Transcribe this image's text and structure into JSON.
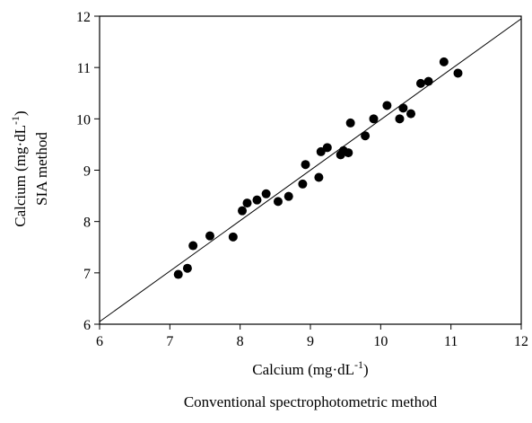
{
  "chart_data": {
    "type": "scatter",
    "xlabel": "Calcium (mg·dL",
    "xlabel_sup": "-1",
    "xlabel_close": ")",
    "xlabel_sub": "Conventional spectrophotometric method",
    "ylabel": "Calcium (mg·dL",
    "ylabel_sup": "-1",
    "ylabel_close": ")",
    "ylabel_sub": "SIA method",
    "xlim": [
      6,
      12
    ],
    "ylim": [
      6,
      12
    ],
    "xticks": [
      "6",
      "7",
      "8",
      "9",
      "10",
      "11",
      "12"
    ],
    "yticks": [
      "6",
      "7",
      "8",
      "9",
      "10",
      "11",
      "12"
    ],
    "grid": false,
    "reference_line": {
      "x": [
        6,
        12
      ],
      "y": [
        6.05,
        11.95
      ]
    },
    "marker_color": "#000000",
    "points": [
      {
        "x": 7.12,
        "y": 6.97
      },
      {
        "x": 7.25,
        "y": 7.09
      },
      {
        "x": 7.33,
        "y": 7.53
      },
      {
        "x": 7.57,
        "y": 7.72
      },
      {
        "x": 7.9,
        "y": 7.7
      },
      {
        "x": 8.03,
        "y": 8.21
      },
      {
        "x": 8.1,
        "y": 8.36
      },
      {
        "x": 8.24,
        "y": 8.42
      },
      {
        "x": 8.37,
        "y": 8.54
      },
      {
        "x": 8.54,
        "y": 8.39
      },
      {
        "x": 8.69,
        "y": 8.49
      },
      {
        "x": 8.89,
        "y": 8.73
      },
      {
        "x": 8.93,
        "y": 9.11
      },
      {
        "x": 9.12,
        "y": 8.86
      },
      {
        "x": 9.15,
        "y": 9.36
      },
      {
        "x": 9.24,
        "y": 9.44
      },
      {
        "x": 9.43,
        "y": 9.3
      },
      {
        "x": 9.47,
        "y": 9.38
      },
      {
        "x": 9.54,
        "y": 9.34
      },
      {
        "x": 9.57,
        "y": 9.92
      },
      {
        "x": 9.78,
        "y": 9.67
      },
      {
        "x": 9.9,
        "y": 10.0
      },
      {
        "x": 10.09,
        "y": 10.26
      },
      {
        "x": 10.27,
        "y": 10.0
      },
      {
        "x": 10.32,
        "y": 10.21
      },
      {
        "x": 10.43,
        "y": 10.1
      },
      {
        "x": 10.57,
        "y": 10.69
      },
      {
        "x": 10.68,
        "y": 10.73
      },
      {
        "x": 10.9,
        "y": 11.11
      },
      {
        "x": 11.1,
        "y": 10.89
      }
    ]
  }
}
